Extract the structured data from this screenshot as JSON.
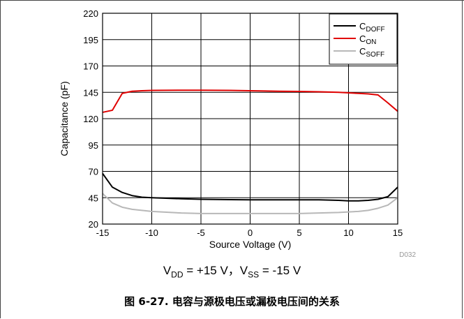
{
  "chart_data": {
    "type": "line",
    "xlabel": "Source Voltage (V)",
    "ylabel": "Capacitance (pF)",
    "xlim": [
      -15,
      15
    ],
    "ylim": [
      20,
      220
    ],
    "xticks": [
      -15,
      -10,
      -5,
      0,
      5,
      10,
      15
    ],
    "yticks": [
      20,
      45,
      70,
      95,
      120,
      145,
      170,
      195,
      220
    ],
    "grid": true,
    "legend_position": "top-right",
    "series": [
      {
        "name": "CDOFF",
        "name_main": "C",
        "name_sub": "DOFF",
        "color": "#000000",
        "x": [
          -15,
          -14,
          -13,
          -12,
          -11,
          -10,
          -7,
          -5,
          -2,
          0,
          3,
          5,
          7,
          9,
          10,
          11,
          12,
          13,
          14,
          15
        ],
        "y": [
          68,
          55,
          50,
          47,
          45.5,
          45,
          44,
          43.5,
          43.2,
          43,
          43,
          43,
          43,
          42.5,
          42,
          42,
          42.5,
          43.5,
          46,
          55
        ]
      },
      {
        "name": "CON",
        "name_main": "C",
        "name_sub": "ON",
        "color": "#e00000",
        "x": [
          -15,
          -14,
          -13,
          -12,
          -11,
          -10,
          -7,
          -5,
          -2,
          0,
          3,
          5,
          7,
          9,
          10,
          11,
          12,
          13,
          14,
          15
        ],
        "y": [
          126,
          128,
          144,
          146,
          146.5,
          146.8,
          147,
          147,
          146.8,
          146.5,
          146,
          145.8,
          145.5,
          145,
          144.5,
          144,
          143.5,
          142.5,
          135,
          127
        ]
      },
      {
        "name": "CSOFF",
        "name_main": "C",
        "name_sub": "SOFF",
        "color": "#b8b8b8",
        "x": [
          -15,
          -14,
          -13,
          -12,
          -11,
          -10,
          -7,
          -5,
          -2,
          0,
          3,
          5,
          7,
          9,
          10,
          11,
          12,
          13,
          14,
          15
        ],
        "y": [
          49,
          40,
          36,
          34,
          33,
          32,
          30.5,
          30,
          30,
          30,
          30,
          30,
          30.5,
          31,
          31.5,
          32,
          33,
          35,
          38,
          45
        ]
      }
    ],
    "watermark": "D032"
  },
  "condition": {
    "v1_main": "V",
    "v1_sub": "DD",
    "v1_value": " = +15 V",
    "sep": "，",
    "v2_main": "V",
    "v2_sub": "SS",
    "v2_value": " = -15 V"
  },
  "caption": "图 6-27. 电容与源极电压或漏极电压间的关系"
}
